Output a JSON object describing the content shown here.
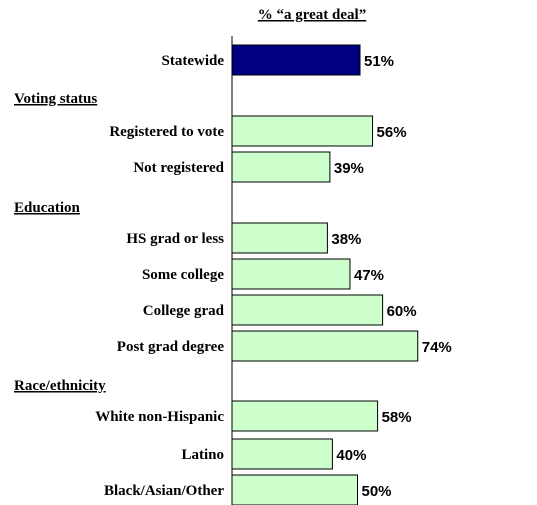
{
  "chart_data": {
    "type": "bar",
    "orientation": "horizontal",
    "title": "% “a great deal”",
    "groups": [
      {
        "label": "",
        "items": [
          {
            "category": "Statewide",
            "value": 51,
            "label": "51%",
            "highlight": true
          }
        ]
      },
      {
        "label": "Voting status",
        "items": [
          {
            "category": "Registered to vote",
            "value": 56,
            "label": "56%"
          },
          {
            "category": "Not registered",
            "value": 39,
            "label": "39%"
          }
        ]
      },
      {
        "label": "Education",
        "items": [
          {
            "category": "HS grad or less",
            "value": 38,
            "label": "38%"
          },
          {
            "category": "Some college",
            "value": 47,
            "label": "47%"
          },
          {
            "category": "College grad",
            "value": 60,
            "label": "60%"
          },
          {
            "category": "Post grad degree",
            "value": 74,
            "label": "74%"
          }
        ]
      },
      {
        "label": "Race/ethnicity",
        "items": [
          {
            "category": "White non-Hispanic",
            "value": 58,
            "label": "58%"
          },
          {
            "category": "Latino",
            "value": 40,
            "label": "40%"
          },
          {
            "category": "Black/Asian/Other",
            "value": 50,
            "label": "50%"
          }
        ]
      }
    ],
    "xlim": [
      0,
      100
    ],
    "colors": {
      "highlight": "#000080",
      "default": "#CCFFCC",
      "stroke": "#000000"
    }
  }
}
